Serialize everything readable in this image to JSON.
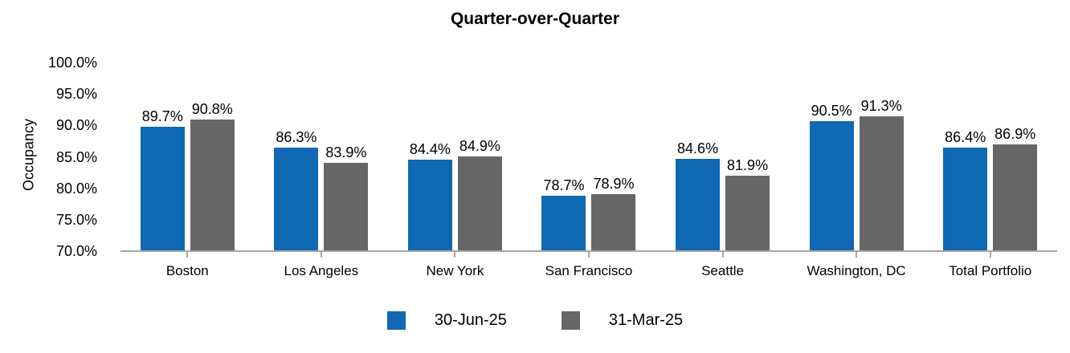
{
  "title": "Quarter-over-Quarter",
  "y_axis": {
    "label": "Occupancy",
    "tick_values": [
      100,
      95,
      90,
      85,
      80,
      75,
      70
    ],
    "tick_labels": [
      "100.0%",
      "95.0%",
      "90.0%",
      "85.0%",
      "80.0%",
      "75.0%",
      "70.0%"
    ]
  },
  "colors": {
    "series_jun": "#0F68B2",
    "series_mar": "#666666",
    "axis_line": "#A6A6A6",
    "text": "#000000",
    "background": "#FFFFFF"
  },
  "chart_data": {
    "type": "bar",
    "title": "Quarter-over-Quarter",
    "xlabel": "",
    "ylabel": "Occupancy",
    "ylim": [
      70,
      100
    ],
    "ytick_step": 5,
    "grid": false,
    "legend_position": "bottom",
    "categories": [
      "Boston",
      "Los Angeles",
      "New York",
      "San Francisco",
      "Seattle",
      "Washington, DC",
      "Total Portfolio"
    ],
    "series": [
      {
        "name": "30-Jun-25",
        "color": "#0F68B2",
        "values": [
          89.7,
          86.3,
          84.4,
          78.7,
          84.6,
          90.5,
          86.4
        ],
        "labels": [
          "89.7%",
          "86.3%",
          "84.4%",
          "78.7%",
          "84.6%",
          "90.5%",
          "86.4%"
        ]
      },
      {
        "name": "31-Mar-25",
        "color": "#666666",
        "values": [
          90.8,
          83.9,
          84.9,
          78.9,
          81.9,
          91.3,
          86.9
        ],
        "labels": [
          "90.8%",
          "83.9%",
          "84.9%",
          "78.9%",
          "81.9%",
          "91.3%",
          "86.9%"
        ]
      }
    ]
  }
}
